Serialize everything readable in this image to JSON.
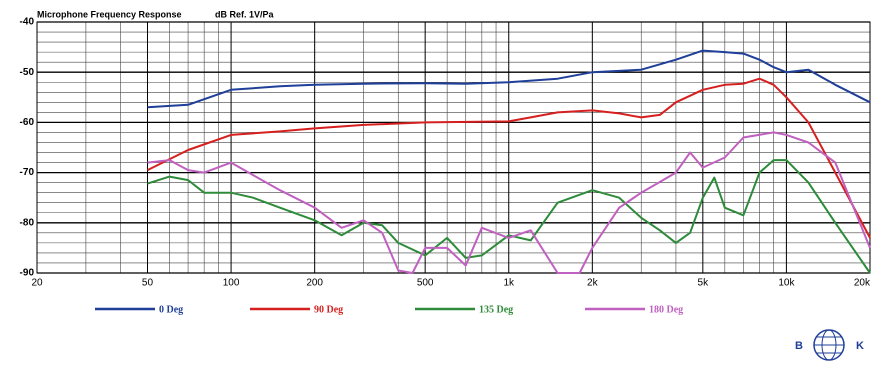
{
  "chart_data": {
    "type": "line",
    "title": "Microphone Frequency Response",
    "subtitle": "dB Ref. 1V/Pa",
    "log_x": true,
    "grid": true,
    "xlim": [
      20,
      20000
    ],
    "ylim": [
      -90,
      -40
    ],
    "xticks": [
      20,
      50,
      100,
      200,
      500,
      {
        "value": 1000,
        "label": "1k"
      },
      {
        "value": 2000,
        "label": "2k"
      },
      {
        "value": 5000,
        "label": "5k"
      },
      {
        "value": 10000,
        "label": "10k"
      },
      {
        "value": 20000,
        "label": "20k"
      }
    ],
    "yticks": [
      -40,
      -50,
      -60,
      -70,
      -80,
      -90
    ],
    "xgrid_minor": [
      30,
      40,
      60,
      70,
      80,
      90,
      300,
      400,
      600,
      700,
      800,
      900,
      3000,
      4000,
      6000,
      7000,
      8000,
      9000
    ],
    "ygrid_minor": [
      -42,
      -44,
      -46,
      -48,
      -52,
      -54,
      -56,
      -58,
      -62,
      -64,
      -66,
      -68,
      -72,
      -74,
      -76,
      -78,
      -82,
      -84,
      -86,
      -88
    ],
    "series": [
      {
        "name": "0 Deg",
        "color": "#1f3f99",
        "x": [
          50,
          70,
          100,
          150,
          200,
          300,
          500,
          700,
          1000,
          1500,
          2000,
          3000,
          4000,
          5000,
          6000,
          7000,
          8000,
          9000,
          10000,
          12000,
          15000,
          20000
        ],
        "values": [
          -57,
          -56.5,
          -53.5,
          -52.8,
          -52.5,
          -52.3,
          -52.2,
          -52.3,
          -52,
          -51.3,
          -50,
          -49.5,
          -47.5,
          -45.7,
          -46,
          -46.3,
          -47.5,
          -49,
          -50,
          -49.5,
          -52.5,
          -56
        ]
      },
      {
        "name": "90 Deg",
        "color": "#d62020",
        "x": [
          50,
          70,
          100,
          150,
          200,
          300,
          500,
          1000,
          1200,
          1500,
          2000,
          2500,
          3000,
          3500,
          4000,
          5000,
          6000,
          7000,
          8000,
          9000,
          10000,
          12000,
          15000,
          20000
        ],
        "values": [
          -69.5,
          -65.5,
          -62.5,
          -61.8,
          -61.2,
          -60.5,
          -60,
          -59.8,
          -59,
          -58,
          -57.6,
          -58.2,
          -59,
          -58.5,
          -56,
          -53.5,
          -52.5,
          -52.3,
          -51.3,
          -52.5,
          -55,
          -60,
          -70,
          -83
        ]
      },
      {
        "name": "135 Deg",
        "color": "#2e8b3a",
        "x": [
          50,
          60,
          70,
          80,
          100,
          120,
          150,
          200,
          250,
          300,
          350,
          400,
          500,
          600,
          700,
          800,
          1000,
          1200,
          1500,
          2000,
          2500,
          3000,
          3500,
          4000,
          4500,
          5000,
          5500,
          6000,
          7000,
          8000,
          9000,
          10000,
          12000,
          15000,
          20000
        ],
        "values": [
          -72.2,
          -70.8,
          -71.5,
          -74,
          -74,
          -75,
          -77,
          -79.5,
          -82.5,
          -80,
          -80.5,
          -84,
          -86.5,
          -83,
          -87,
          -86.5,
          -82.5,
          -83.5,
          -76,
          -73.5,
          -75,
          -79,
          -81.5,
          -84,
          -82,
          -75,
          -71,
          -77,
          -78.5,
          -70,
          -67.5,
          -67.5,
          -72,
          -80,
          -90
        ]
      },
      {
        "name": "180 Deg",
        "color": "#c060c0",
        "x": [
          50,
          60,
          70,
          80,
          100,
          120,
          150,
          200,
          250,
          300,
          350,
          400,
          450,
          500,
          600,
          700,
          800,
          1000,
          1200,
          1500,
          1800,
          2000,
          2500,
          3000,
          4000,
          4500,
          5000,
          6000,
          7000,
          9000,
          10000,
          12000,
          15000,
          20000
        ],
        "values": [
          -68,
          -67.5,
          -69.5,
          -70,
          -68,
          -70.5,
          -73.5,
          -77,
          -81,
          -79.5,
          -82,
          -89.5,
          -90,
          -85,
          -85,
          -88.5,
          -81,
          -83,
          -81.5,
          -90,
          -90,
          -85,
          -77,
          -74,
          -70,
          -66,
          -69,
          -67,
          -63,
          -62,
          -62.5,
          -64,
          -68,
          -85
        ]
      }
    ]
  },
  "logo": {
    "left": "B",
    "right": "K"
  }
}
